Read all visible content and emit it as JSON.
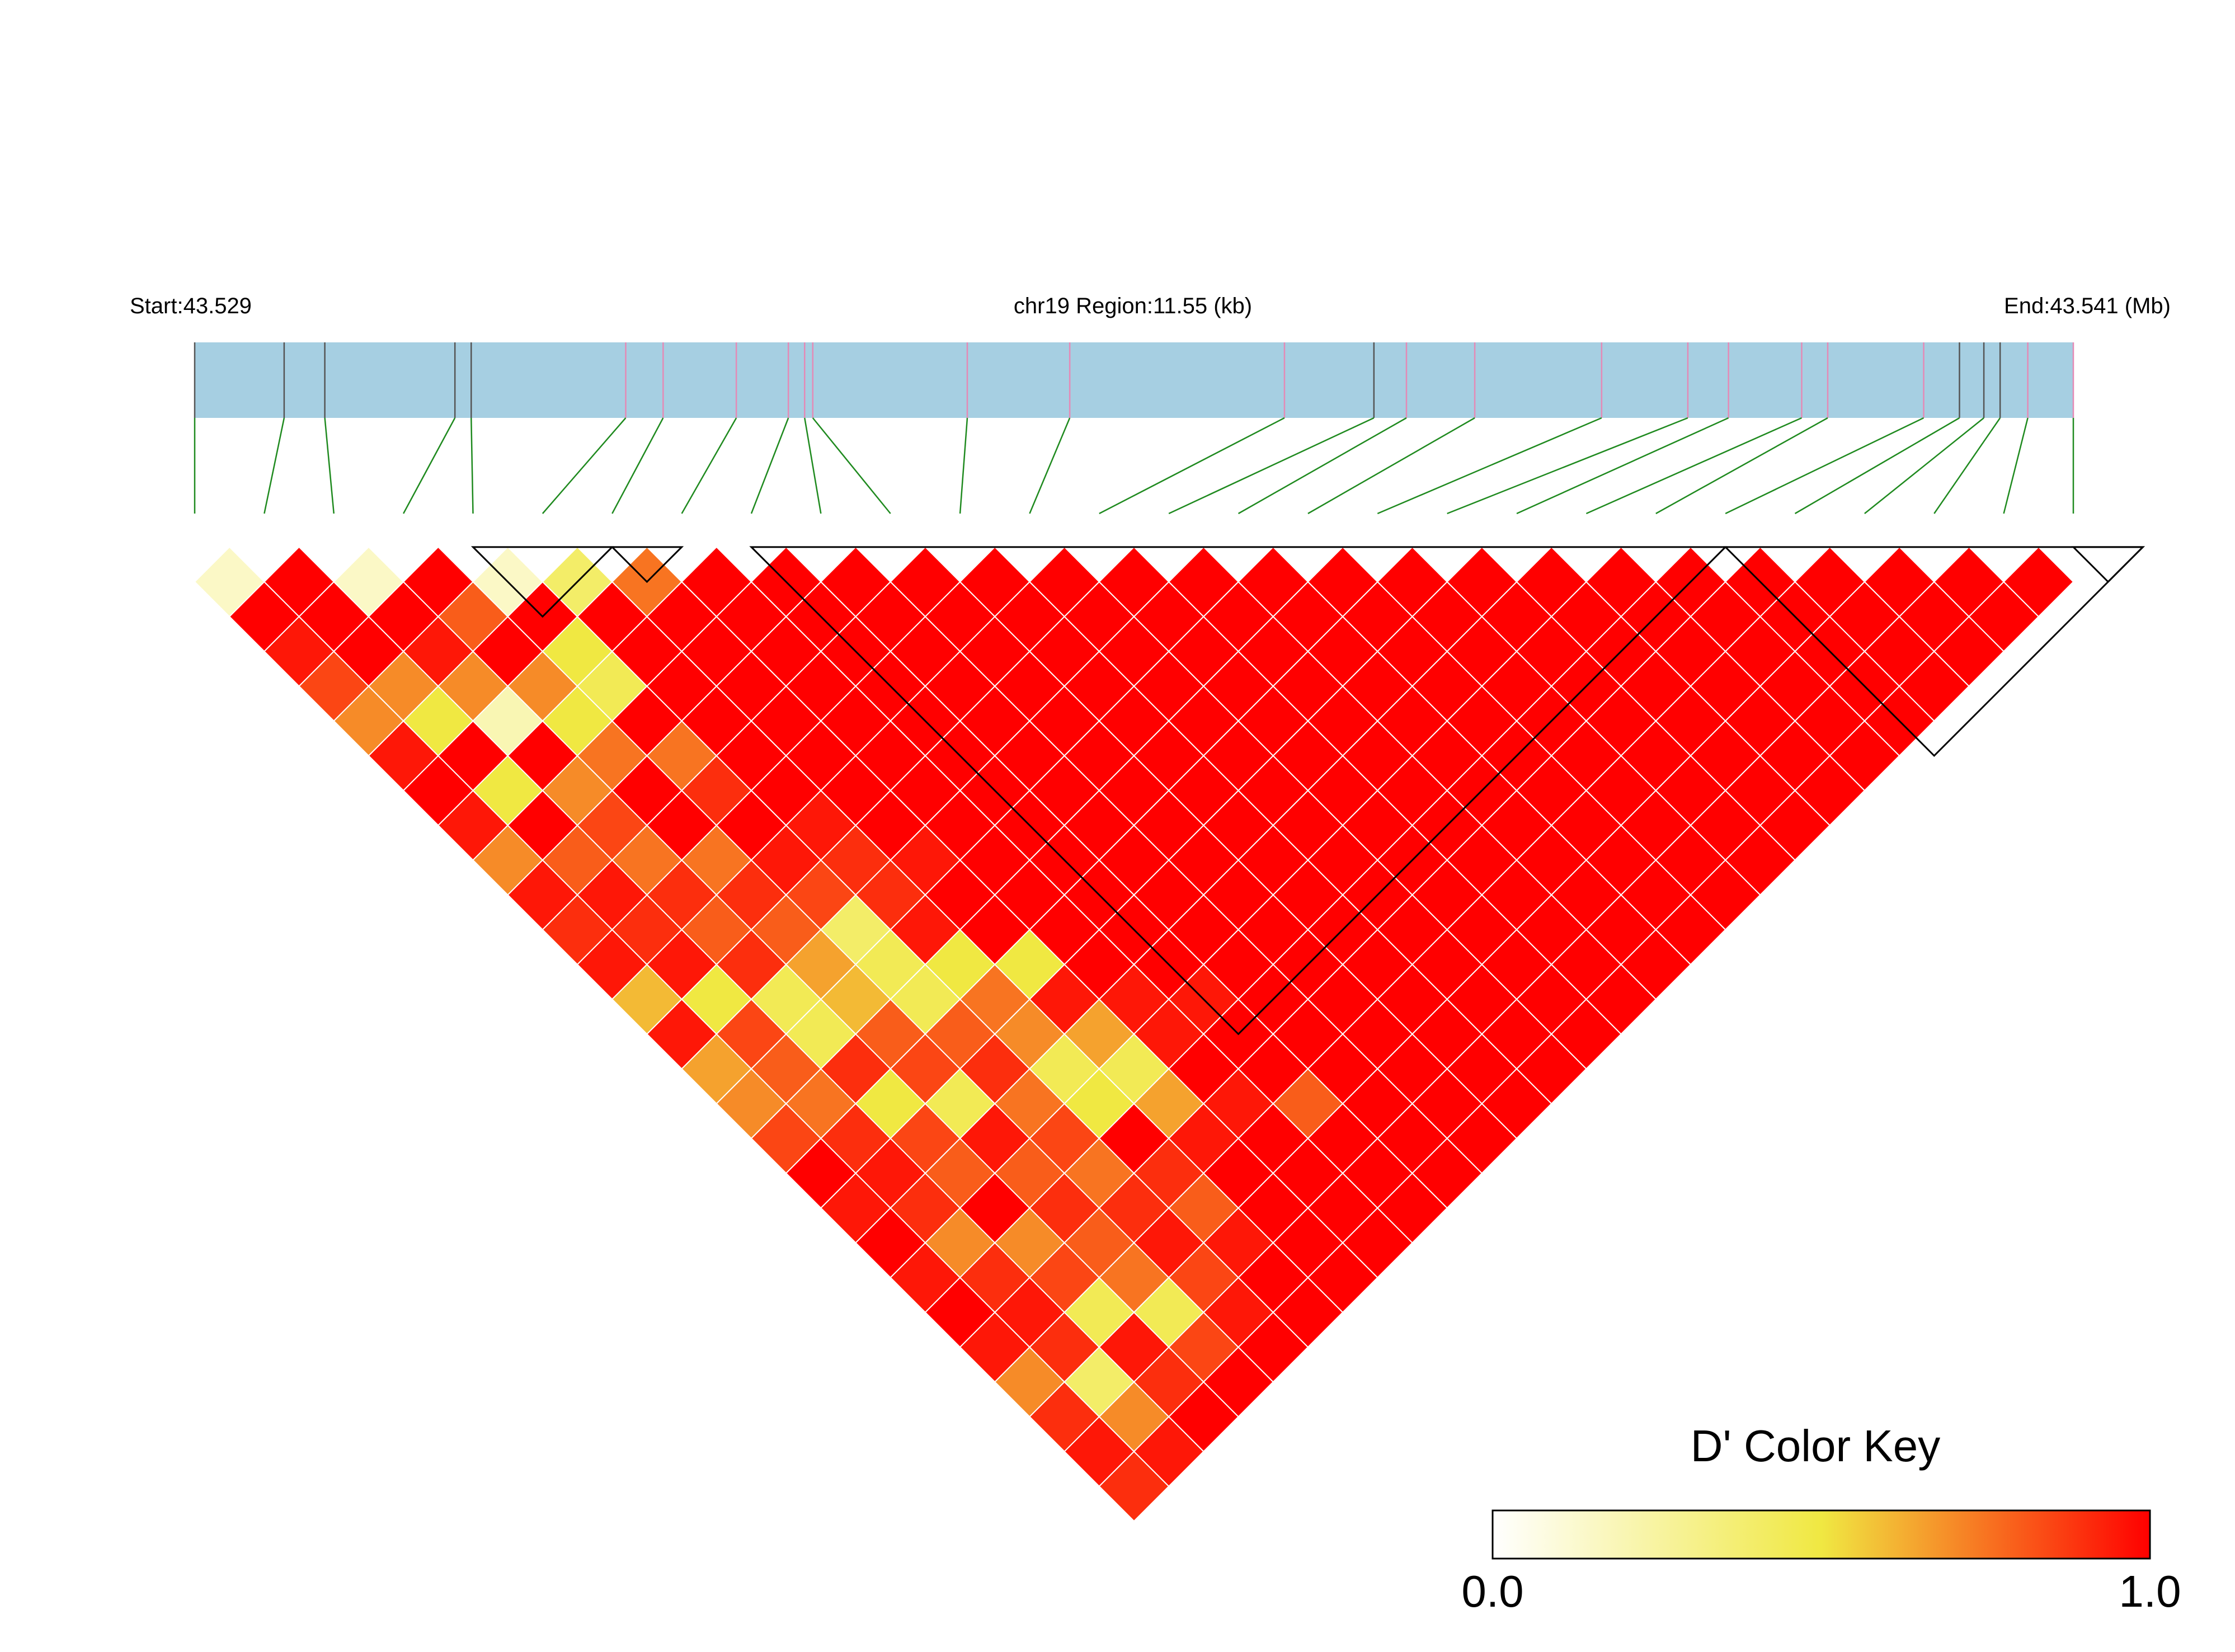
{
  "header": {
    "start_label": "Start:43.529",
    "region_label": "chr19 Region:11.55 (kb)",
    "end_label": "End:43.541 (Mb)"
  },
  "color_key": {
    "title": "D' Color Key",
    "min_label": "0.0",
    "max_label": "1.0",
    "low_color": "#ffffff",
    "mid_color": "#f0e842",
    "high_color": "#ff0000"
  },
  "colors": {
    "track_fill": "#a6cfe2",
    "tick_dark": "#555555",
    "tick_pink": "#e48ab6",
    "connector": "#1f8a1f",
    "cell_border": "#ffffff",
    "block_outline": "#000000"
  },
  "chart_data": {
    "type": "heatmap",
    "description_note": "",
    "region": {
      "chromosome": "chr19",
      "start_mb": 43.529,
      "end_mb": 43.541,
      "length_kb": 11.55
    },
    "snp_count": 28,
    "snp_positions_kb": [
      0.0,
      0.55,
      0.8,
      1.6,
      1.7,
      2.65,
      2.88,
      3.33,
      3.65,
      3.75,
      3.8,
      4.75,
      5.38,
      6.7,
      7.25,
      7.45,
      7.87,
      8.65,
      9.18,
      9.43,
      9.88,
      10.04,
      10.63,
      10.85,
      11.0,
      11.1,
      11.27,
      11.55
    ],
    "tick_color_class": [
      "dark",
      "dark",
      "dark",
      "dark",
      "dark",
      "pink",
      "pink",
      "pink",
      "pink",
      "pink",
      "pink",
      "pink",
      "pink",
      "pink",
      "dark",
      "pink",
      "pink",
      "pink",
      "pink",
      "pink",
      "pink",
      "pink",
      "pink",
      "dark",
      "dark",
      "dark",
      "pink",
      "pink"
    ],
    "value_metric": "D'",
    "value_range": [
      0,
      1
    ],
    "matrix": [
      [],
      [
        0.15
      ],
      [
        1,
        1
      ],
      [
        0.95,
        1,
        0.15
      ],
      [
        0.85,
        1,
        1,
        1
      ],
      [
        0.7,
        0.7,
        0.95,
        0.8,
        0.15
      ],
      [
        0.95,
        0.5,
        0.7,
        1,
        1,
        0.4
      ],
      [
        1,
        1,
        0.2,
        0.7,
        0.5,
        1,
        0.75
      ],
      [
        0.95,
        0.5,
        1,
        0.5,
        0.45,
        1,
        1,
        1
      ],
      [
        0.7,
        1,
        0.7,
        0.75,
        1,
        1,
        1,
        1,
        1
      ],
      [
        0.95,
        0.8,
        0.85,
        1,
        0.75,
        1,
        1,
        1,
        1,
        1
      ],
      [
        0.9,
        0.95,
        0.75,
        1,
        0.9,
        1,
        1,
        1,
        1,
        1,
        1
      ],
      [
        0.95,
        0.9,
        0.9,
        0.75,
        1,
        1,
        1,
        1,
        1,
        1,
        1,
        1
      ],
      [
        0.6,
        0.95,
        0.8,
        0.9,
        0.95,
        0.95,
        1,
        1,
        1,
        1,
        1,
        1,
        1
      ],
      [
        0.95,
        0.5,
        0.9,
        0.8,
        0.85,
        0.9,
        1,
        1,
        1,
        1,
        1,
        1,
        1,
        1
      ],
      [
        0.65,
        0.85,
        0.45,
        0.65,
        0.4,
        0.9,
        0.95,
        1,
        1,
        1,
        1,
        1,
        1,
        1,
        1
      ],
      [
        0.7,
        0.8,
        0.45,
        0.6,
        0.45,
        0.95,
        1,
        1,
        1,
        1,
        1,
        1,
        1,
        1,
        1,
        1
      ],
      [
        0.85,
        0.75,
        0.9,
        0.8,
        0.45,
        0.5,
        1,
        1,
        1,
        1,
        1,
        1,
        1,
        1,
        1,
        1,
        1
      ],
      [
        1,
        0.9,
        0.5,
        0.85,
        0.8,
        0.75,
        0.5,
        1,
        1,
        1,
        1,
        1,
        1,
        1,
        1,
        1,
        1,
        1
      ],
      [
        0.95,
        0.95,
        0.85,
        0.45,
        0.9,
        0.7,
        0.95,
        1,
        1,
        1,
        1,
        1,
        1,
        1,
        1,
        1,
        1,
        1,
        1
      ],
      [
        1,
        0.9,
        0.8,
        0.95,
        0.75,
        0.45,
        0.65,
        0.95,
        1,
        1,
        1,
        1,
        1,
        1,
        1,
        1,
        1,
        1,
        1,
        1
      ],
      [
        0.95,
        0.7,
        1,
        0.8,
        0.85,
        0.5,
        0.45,
        0.95,
        0.95,
        1,
        1,
        1,
        1,
        1,
        1,
        1,
        1,
        1,
        1,
        1,
        1
      ],
      [
        1,
        0.9,
        0.7,
        0.9,
        0.75,
        1,
        0.65,
        1,
        1,
        1,
        1,
        1,
        1,
        1,
        1,
        1,
        1,
        1,
        1,
        1,
        1,
        1
      ],
      [
        0.95,
        0.95,
        0.85,
        0.8,
        0.9,
        0.9,
        0.95,
        0.95,
        1,
        1,
        1,
        1,
        1,
        1,
        1,
        1,
        1,
        1,
        1,
        1,
        1,
        1,
        1
      ],
      [
        0.7,
        0.9,
        0.45,
        0.75,
        0.95,
        0.8,
        1,
        1,
        0.8,
        1,
        1,
        1,
        1,
        1,
        1,
        1,
        1,
        1,
        1,
        1,
        1,
        1,
        1,
        1
      ],
      [
        0.9,
        0.4,
        0.95,
        0.45,
        0.85,
        0.95,
        1,
        1,
        1,
        1,
        1,
        1,
        1,
        1,
        1,
        1,
        1,
        1,
        1,
        1,
        1,
        1,
        1,
        1,
        1
      ],
      [
        0.95,
        0.7,
        0.9,
        0.85,
        0.95,
        1,
        1,
        1,
        1,
        1,
        1,
        1,
        1,
        1,
        1,
        1,
        1,
        1,
        1,
        1,
        1,
        1,
        1,
        1,
        1,
        1
      ],
      [
        0.9,
        0.95,
        1,
        1,
        1,
        1,
        1,
        1,
        1,
        1,
        1,
        1,
        1,
        1,
        1,
        1,
        1,
        1,
        1,
        1,
        1,
        1,
        1,
        1,
        1,
        1,
        1
      ]
    ],
    "haplotype_blocks": [
      [
        5,
        7
      ],
      [
        7,
        8
      ],
      [
        9,
        23
      ],
      [
        23,
        29
      ],
      [
        28,
        29
      ]
    ],
    "blocks_note": ""
  }
}
